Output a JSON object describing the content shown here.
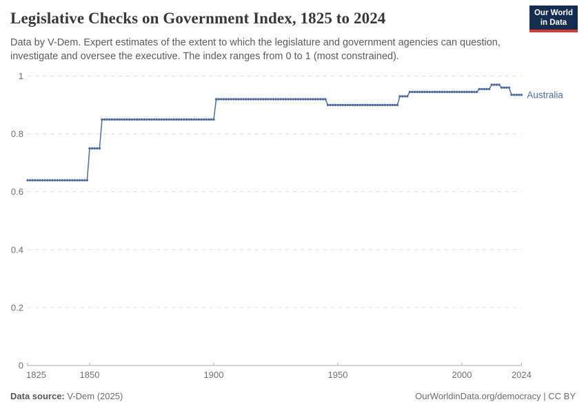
{
  "header": {
    "title": "Legislative Checks on Government Index, 1825 to 2024",
    "subtitle": "Data by V-Dem. Expert estimates of the extent to which the legislature and government agencies can question, investigate and oversee the executive. The index ranges from 0 to 1 (most constrained).",
    "logo": {
      "line1": "Our World",
      "line2": "in Data",
      "bg_color": "#152d4f",
      "accent_color": "#d93a34"
    }
  },
  "chart_data": {
    "type": "line",
    "title": "Legislative Checks on Government Index, 1825 to 2024",
    "xlabel": "",
    "ylabel": "",
    "x_ticks": [
      1825,
      1850,
      1900,
      1950,
      2000,
      2024
    ],
    "y_ticks": [
      0,
      0.2,
      0.4,
      0.6,
      0.8,
      1
    ],
    "xlim": [
      1825,
      2024
    ],
    "ylim": [
      0,
      1
    ],
    "grid": "dashed-horizontal",
    "legend_position": "right-of-line-end",
    "series": [
      {
        "name": "Australia",
        "color": "#4c6a9c",
        "steps": [
          {
            "from": 1825,
            "to": 1849,
            "value": 0.64
          },
          {
            "from": 1850,
            "to": 1854,
            "value": 0.75
          },
          {
            "from": 1855,
            "to": 1900,
            "value": 0.85
          },
          {
            "from": 1901,
            "to": 1945,
            "value": 0.92
          },
          {
            "from": 1946,
            "to": 1974,
            "value": 0.9
          },
          {
            "from": 1975,
            "to": 1978,
            "value": 0.93
          },
          {
            "from": 1979,
            "to": 2006,
            "value": 0.945
          },
          {
            "from": 2007,
            "to": 2011,
            "value": 0.955
          },
          {
            "from": 2012,
            "to": 2015,
            "value": 0.97
          },
          {
            "from": 2016,
            "to": 2019,
            "value": 0.96
          },
          {
            "from": 2020,
            "to": 2024,
            "value": 0.935
          }
        ]
      }
    ]
  },
  "footer": {
    "source_label": "Data source:",
    "source_value": "V-Dem (2025)",
    "credit": "OurWorldinData.org/democracy | CC BY"
  }
}
